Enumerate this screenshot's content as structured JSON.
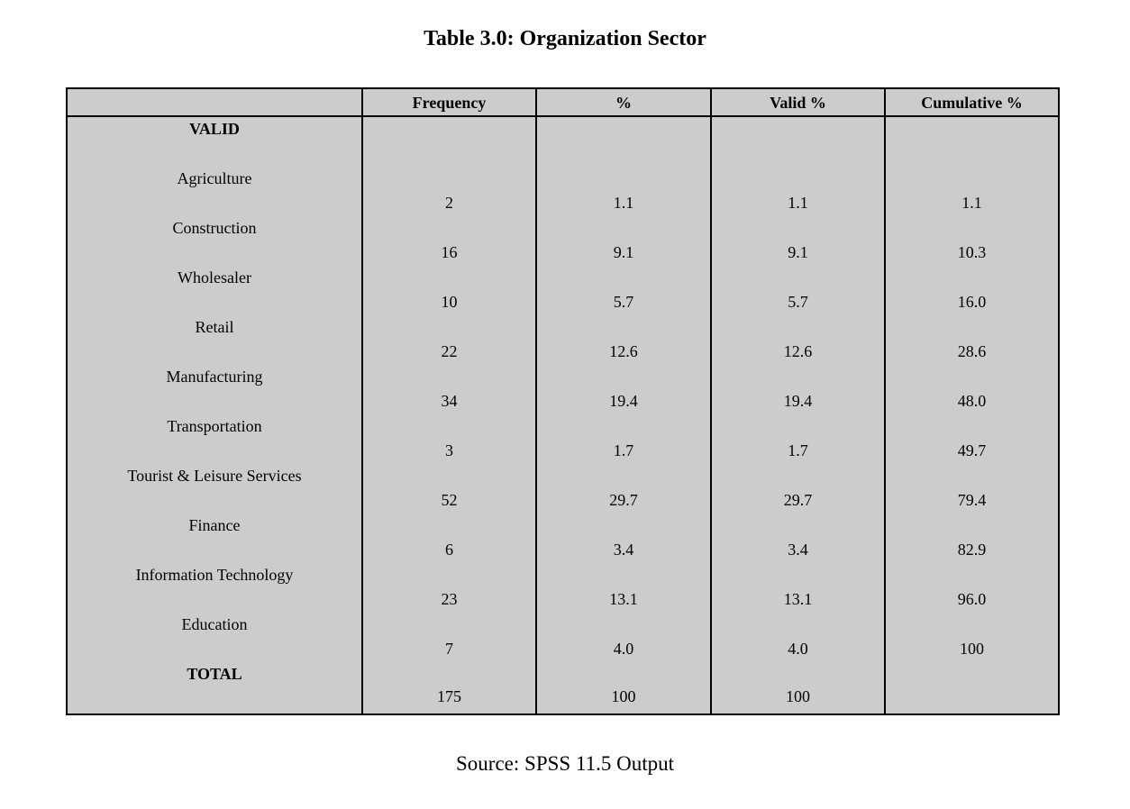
{
  "title": "Table 3.0: Organization Sector",
  "source": "Source: SPSS 11.5 Output",
  "table": {
    "headers": [
      "",
      "Frequency",
      "%",
      "Valid %",
      "Cumulative %"
    ],
    "section_label": "VALID",
    "rows": [
      {
        "label": "Agriculture",
        "frequency": "2",
        "percent": "1.1",
        "valid_percent": "1.1",
        "cumulative_percent": "1.1"
      },
      {
        "label": "Construction",
        "frequency": "16",
        "percent": "9.1",
        "valid_percent": "9.1",
        "cumulative_percent": "10.3"
      },
      {
        "label": "Wholesaler",
        "frequency": "10",
        "percent": "5.7",
        "valid_percent": "5.7",
        "cumulative_percent": "16.0"
      },
      {
        "label": "Retail",
        "frequency": "22",
        "percent": "12.6",
        "valid_percent": "12.6",
        "cumulative_percent": "28.6"
      },
      {
        "label": "Manufacturing",
        "frequency": "34",
        "percent": "19.4",
        "valid_percent": "19.4",
        "cumulative_percent": "48.0"
      },
      {
        "label": "Transportation",
        "frequency": "3",
        "percent": "1.7",
        "valid_percent": "1.7",
        "cumulative_percent": "49.7"
      },
      {
        "label": "Tourist & Leisure Services",
        "frequency": "52",
        "percent": "29.7",
        "valid_percent": "29.7",
        "cumulative_percent": "79.4"
      },
      {
        "label": "Finance",
        "frequency": "6",
        "percent": "3.4",
        "valid_percent": "3.4",
        "cumulative_percent": "82.9"
      },
      {
        "label": "Information Technology",
        "frequency": "23",
        "percent": "13.1",
        "valid_percent": "13.1",
        "cumulative_percent": "96.0"
      },
      {
        "label": "Education",
        "frequency": "7",
        "percent": "4.0",
        "valid_percent": "4.0",
        "cumulative_percent": "100"
      }
    ],
    "total": {
      "label": "TOTAL",
      "frequency": "175",
      "percent": "100",
      "valid_percent": "100",
      "cumulative_percent": ""
    }
  },
  "colors": {
    "table_background": "#cccccc",
    "border": "#000000"
  }
}
